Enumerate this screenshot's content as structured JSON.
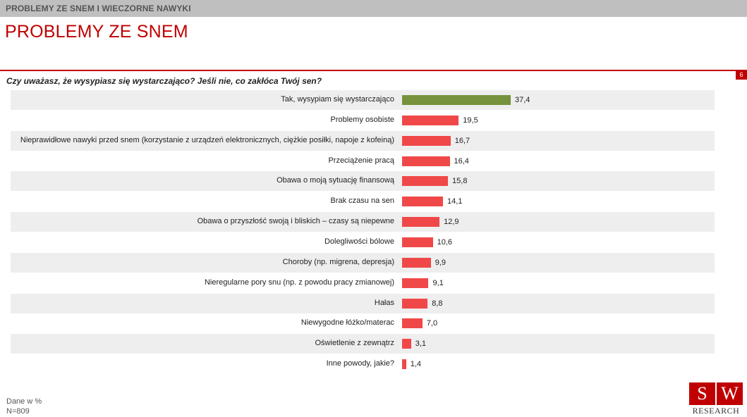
{
  "header": {
    "section_title": "PROBLEMY ZE SNEM I WIECZORNE NAWYKI",
    "page_title": "PROBLEMY ZE SNEM",
    "page_number": "6"
  },
  "question": "Czy uważasz, że wysypiasz się wystarczająco? Jeśli nie, co zakłóca Twój sen?",
  "chart_data": {
    "type": "bar",
    "orientation": "horizontal",
    "title": "Czy uważasz, że wysypiasz się wystarczająco? Jeśli nie, co zakłóca Twój sen?",
    "xlabel": "",
    "ylabel": "",
    "xlim": [
      0,
      40
    ],
    "categories": [
      "Tak, wysypiam się wystarczająco",
      "Problemy osobiste",
      "Nieprawidłowe nawyki przed snem (korzystanie z urządzeń elektronicznych, ciężkie posiłki, napoje z kofeiną)",
      "Przeciążenie pracą",
      "Obawa o moją sytuację finansową",
      "Brak czasu na sen",
      "Obawa o przyszłość swoją i bliskich – czasy są niepewne",
      "Dolegliwości bólowe",
      "Choroby (np. migrena, depresja)",
      "Nieregularne pory snu (np. z powodu pracy zmianowej)",
      "Hałas",
      "Niewygodne łóżko/materac",
      "Oświetlenie z zewnątrz",
      "Inne powody, jakie?"
    ],
    "values": [
      37.4,
      19.5,
      16.7,
      16.4,
      15.8,
      14.1,
      12.9,
      10.6,
      9.9,
      9.1,
      8.8,
      7.0,
      3.1,
      1.4
    ],
    "value_labels": [
      "37,4",
      "19,5",
      "16,7",
      "16,4",
      "15,8",
      "14,1",
      "12,9",
      "10,6",
      "9,9",
      "9,1",
      "8,8",
      "7,0",
      "3,1",
      "1,4"
    ],
    "colors": [
      "#76923c",
      "#f04848",
      "#f04848",
      "#f04848",
      "#f04848",
      "#f04848",
      "#f04848",
      "#f04848",
      "#f04848",
      "#f04848",
      "#f04848",
      "#f04848",
      "#f04848",
      "#f04848"
    ],
    "grid": false
  },
  "footer": {
    "unit": "Dane w %",
    "sample": "N=809"
  },
  "logo": {
    "letter_s": "S",
    "letter_w": "W",
    "text": "RESEARCH"
  }
}
